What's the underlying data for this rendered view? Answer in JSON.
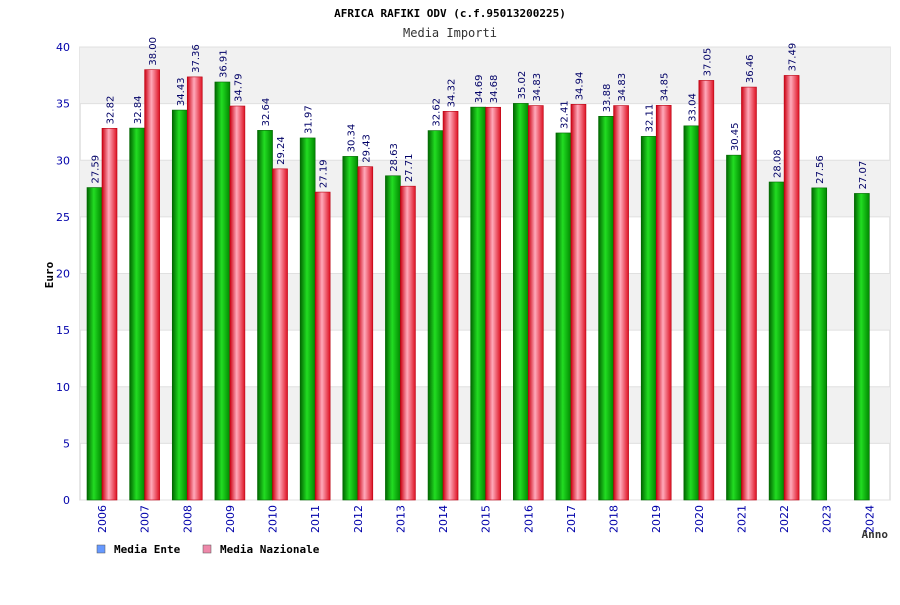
{
  "chart_data": {
    "type": "bar",
    "title": "AFRICA RAFIKI ODV (c.f.95013200225)",
    "subtitle": "Media Importi",
    "ylabel": "Euro",
    "xlabel": "Anno",
    "ylim": [
      0,
      40
    ],
    "yticks": [
      0,
      5,
      10,
      15,
      20,
      25,
      30,
      35,
      40
    ],
    "grid": true,
    "legend_position": "bottom-left",
    "categories": [
      "2006",
      "2007",
      "2008",
      "2009",
      "2010",
      "2011",
      "2012",
      "2013",
      "2014",
      "2015",
      "2016",
      "2017",
      "2018",
      "2019",
      "2020",
      "2021",
      "2022",
      "2023",
      "2024"
    ],
    "series": [
      {
        "name": "Media Ente",
        "color": "#00aa00",
        "legend_color": "#6699ff",
        "values": [
          27.59,
          32.84,
          34.43,
          36.91,
          32.64,
          31.97,
          30.34,
          28.63,
          32.62,
          34.69,
          35.02,
          32.41,
          33.88,
          32.11,
          33.04,
          30.45,
          28.08,
          27.56,
          27.07
        ]
      },
      {
        "name": "Media Nazionale",
        "color": "#ee2233",
        "legend_color": "#ee88aa",
        "values": [
          32.82,
          38.0,
          37.36,
          34.79,
          29.24,
          27.19,
          29.43,
          27.71,
          34.32,
          34.68,
          34.83,
          34.94,
          34.83,
          34.85,
          37.05,
          36.46,
          37.49,
          null,
          null
        ]
      }
    ]
  }
}
